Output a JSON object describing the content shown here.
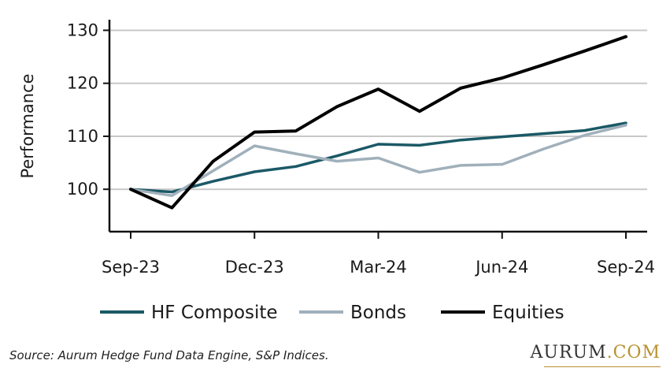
{
  "chart_data": {
    "type": "line",
    "ylabel": "Performance",
    "ylim": [
      92,
      132
    ],
    "yticks": [
      100,
      110,
      120,
      130
    ],
    "grid": true,
    "legend_position": "bottom",
    "x": [
      "Sep-23",
      "Oct-23",
      "Nov-23",
      "Dec-23",
      "Jan-24",
      "Feb-24",
      "Mar-24",
      "Apr-24",
      "May-24",
      "Jun-24",
      "Jul-24",
      "Aug-24",
      "Sep-24"
    ],
    "x_tick_labels": [
      "Sep-23",
      "Dec-23",
      "Mar-24",
      "Jun-24",
      "Sep-24"
    ],
    "x_tick_indices": [
      0,
      3,
      6,
      9,
      12
    ],
    "series": [
      {
        "name": "HF Composite",
        "color": "#1b5966",
        "values": [
          100,
          99.5,
          101.5,
          103.3,
          104.3,
          106.3,
          108.5,
          108.3,
          109.3,
          109.9,
          110.5,
          111.1,
          112.5
        ]
      },
      {
        "name": "Bonds",
        "color": "#a0b0bb",
        "values": [
          100,
          98.8,
          103.5,
          108.2,
          106.7,
          105.3,
          105.9,
          103.2,
          104.5,
          104.7,
          107.6,
          110.2,
          112.1
        ]
      },
      {
        "name": "Equities",
        "color": "#000000",
        "values": [
          100,
          96.5,
          105.3,
          110.8,
          111.0,
          115.6,
          118.9,
          114.7,
          119.1,
          121.0,
          123.5,
          126.1,
          128.8
        ]
      }
    ]
  },
  "footer": {
    "source": "Source: Aurum Hedge Fund Data Engine, S&P Indices.",
    "brand_name": "AURUM",
    "brand_domain": ".COM"
  }
}
